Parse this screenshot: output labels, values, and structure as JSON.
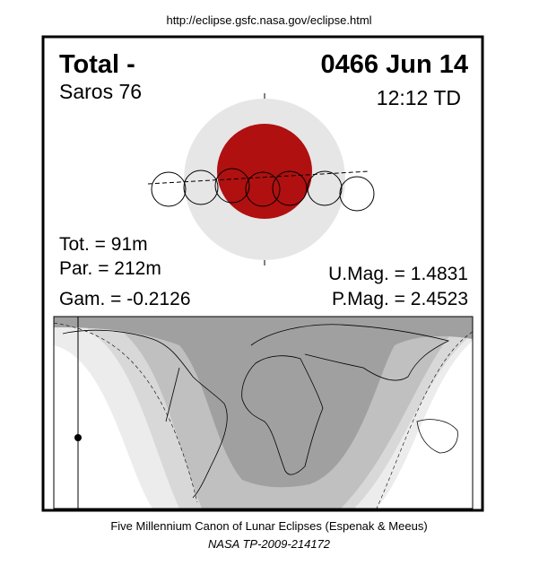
{
  "header": {
    "url": "http://eclipse.gsfc.nasa.gov/eclipse.html"
  },
  "eclipse": {
    "type": "Total  -",
    "date": "0466 Jun 14",
    "saros": "Saros  76",
    "time": "12:12 TD",
    "totality": "Tot. =  91m",
    "partial": "Par. = 212m",
    "gamma": "Gam. = -0.2126",
    "umbral_magnitude": "U.Mag. = 1.4831",
    "penumbral_magnitude": "P.Mag. = 2.4523"
  },
  "footer": {
    "title": "Five Millennium Canon of Lunar Eclipses (Espenak & Meeus)",
    "reference": "NASA TP-2009-214172"
  }
}
